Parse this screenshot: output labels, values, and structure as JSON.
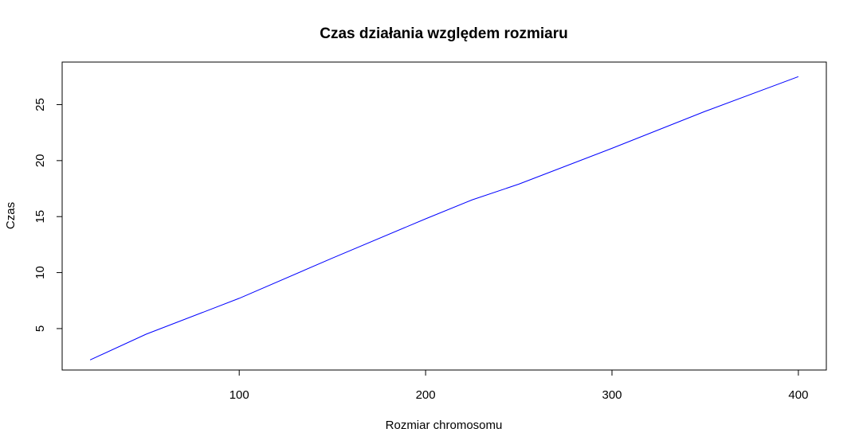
{
  "chart_data": {
    "type": "line",
    "title": "Czas działania względem rozmiaru",
    "xlabel": "Rozmiar chromosomu",
    "ylabel": "Czas",
    "xlim": [
      5,
      415
    ],
    "ylim": [
      1.3,
      28.8
    ],
    "xticks": [
      100,
      200,
      300,
      400
    ],
    "yticks": [
      5,
      10,
      15,
      20,
      25
    ],
    "grid": false,
    "series": [
      {
        "color": "#0000ff",
        "x": [
          20,
          50,
          100,
          150,
          200,
          225,
          250,
          300,
          350,
          400
        ],
        "y": [
          2.2,
          4.5,
          7.7,
          11.3,
          14.8,
          16.5,
          17.9,
          21.1,
          24.4,
          27.5
        ]
      }
    ]
  }
}
